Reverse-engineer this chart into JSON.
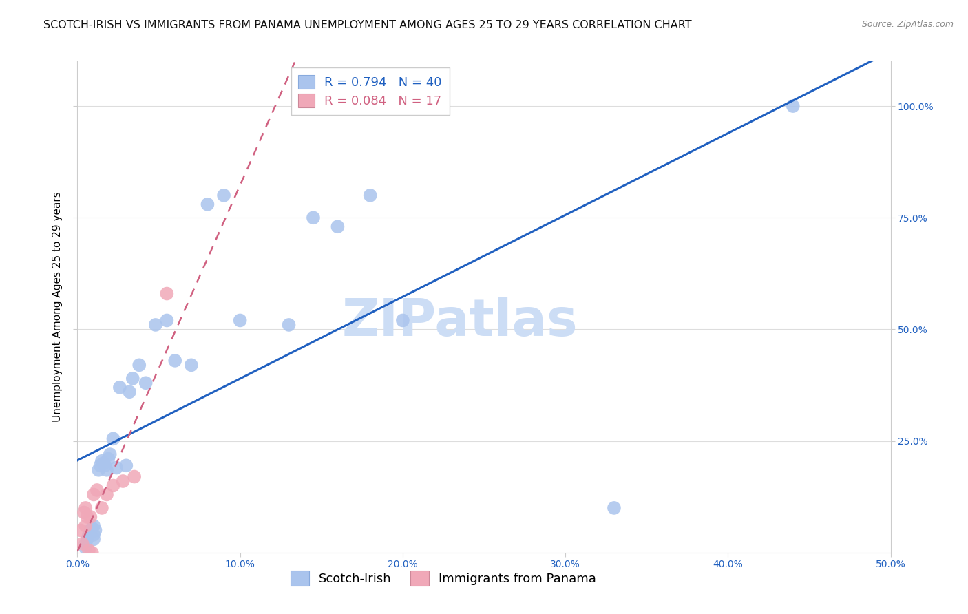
{
  "title": "SCOTCH-IRISH VS IMMIGRANTS FROM PANAMA UNEMPLOYMENT AMONG AGES 25 TO 29 YEARS CORRELATION CHART",
  "source": "Source: ZipAtlas.com",
  "ylabel": "Unemployment Among Ages 25 to 29 years",
  "xlim": [
    0.0,
    0.5
  ],
  "ylim": [
    0.0,
    1.1
  ],
  "xticks": [
    0.0,
    0.1,
    0.2,
    0.3,
    0.4,
    0.5
  ],
  "yticks": [
    0.25,
    0.5,
    0.75,
    1.0
  ],
  "xticklabels": [
    "0.0%",
    "10.0%",
    "20.0%",
    "30.0%",
    "40.0%",
    "50.0%"
  ],
  "yticklabels_right": [
    "25.0%",
    "50.0%",
    "75.0%",
    "100.0%"
  ],
  "scotch_irish_R": "0.794",
  "scotch_irish_N": "40",
  "panama_R": "0.084",
  "panama_N": "17",
  "scotch_irish_dot_color": "#aac4ed",
  "scotch_irish_line_color": "#2060c0",
  "panama_dot_color": "#f0a8b8",
  "panama_line_color": "#d06080",
  "watermark_text": "ZIPatlas",
  "watermark_color": "#ccddf5",
  "background_color": "#ffffff",
  "grid_color": "#dddddd",
  "title_color": "#111111",
  "source_color": "#888888",
  "tick_color": "#2060c0",
  "scotch_irish_x": [
    0.005,
    0.005,
    0.006,
    0.007,
    0.008,
    0.009,
    0.01,
    0.01,
    0.01,
    0.011,
    0.013,
    0.014,
    0.015,
    0.016,
    0.017,
    0.018,
    0.019,
    0.02,
    0.022,
    0.024,
    0.026,
    0.03,
    0.032,
    0.034,
    0.038,
    0.042,
    0.048,
    0.055,
    0.06,
    0.07,
    0.08,
    0.09,
    0.1,
    0.13,
    0.145,
    0.16,
    0.18,
    0.2,
    0.33,
    0.44
  ],
  "scotch_irish_y": [
    0.01,
    0.02,
    0.03,
    0.04,
    0.05,
    0.055,
    0.04,
    0.03,
    0.06,
    0.05,
    0.185,
    0.195,
    0.205,
    0.2,
    0.195,
    0.185,
    0.21,
    0.22,
    0.255,
    0.19,
    0.37,
    0.195,
    0.36,
    0.39,
    0.42,
    0.38,
    0.51,
    0.52,
    0.43,
    0.42,
    0.78,
    0.8,
    0.52,
    0.51,
    0.75,
    0.73,
    0.8,
    0.52,
    0.1,
    1.0
  ],
  "panama_x": [
    0.002,
    0.003,
    0.004,
    0.005,
    0.005,
    0.006,
    0.007,
    0.008,
    0.009,
    0.01,
    0.012,
    0.015,
    0.018,
    0.022,
    0.028,
    0.035,
    0.055
  ],
  "panama_y": [
    0.05,
    0.02,
    0.09,
    0.1,
    0.06,
    0.08,
    0.005,
    0.08,
    0.0,
    0.13,
    0.14,
    0.1,
    0.13,
    0.15,
    0.16,
    0.17,
    0.58
  ],
  "title_fontsize": 11.5,
  "axis_label_fontsize": 11,
  "tick_fontsize": 10,
  "legend_fontsize": 13,
  "source_fontsize": 9
}
